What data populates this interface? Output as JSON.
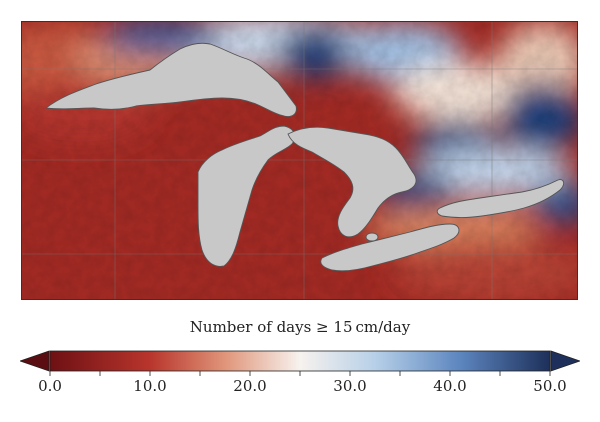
{
  "legend": {
    "title": "Number of days ≥ 15 cm/day",
    "ticks": [
      "0.0",
      "10.0",
      "20.0",
      "30.0",
      "40.0",
      "50.0"
    ],
    "range": [
      0,
      50
    ]
  },
  "colors": {
    "low": "#8b1a1a",
    "mid_low": "#d9735a",
    "mid": "#f5e6dc",
    "mid_high": "#a9c7e2",
    "high": "#1f3f7a",
    "lake_fill": "#c8c8c8",
    "lake_edge": "#555555",
    "gridline": "#777777",
    "arrow": "#5a0e12",
    "arrow_high": "#1d2f5a"
  }
}
